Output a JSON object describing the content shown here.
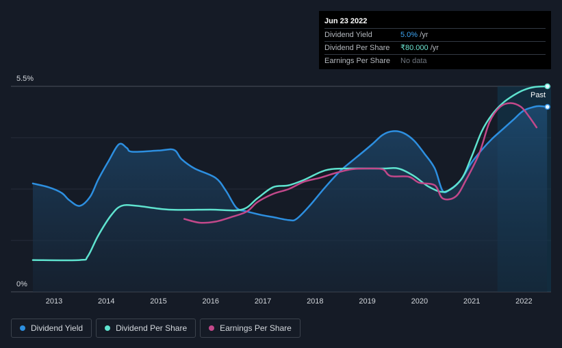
{
  "tooltip": {
    "date": "Jun 23 2022",
    "rows": [
      {
        "label": "Dividend Yield",
        "value": "5.0%",
        "unit": " /yr"
      },
      {
        "label": "Dividend Per Share",
        "value": "₹80.000",
        "unit": " /yr"
      },
      {
        "label": "Earnings Per Share",
        "value": "No data",
        "unit": ""
      }
    ]
  },
  "legend": [
    {
      "label": "Dividend Yield",
      "color": "#2d8fe0"
    },
    {
      "label": "Dividend Per Share",
      "color": "#5fe3cf"
    },
    {
      "label": "Earnings Per Share",
      "color": "#c2488a"
    }
  ],
  "chart_data": {
    "type": "line",
    "title": "",
    "xlabel": "",
    "ylabel": "",
    "xlim": [
      2012.6,
      2022.5
    ],
    "ylim": [
      0,
      5.5
    ],
    "y_ticks": [
      {
        "value": 5.5,
        "label": "5.5%"
      },
      {
        "value": 0,
        "label": "0%"
      }
    ],
    "x_ticks": [
      {
        "value": 2013,
        "label": "2013"
      },
      {
        "value": 2014,
        "label": "2014"
      },
      {
        "value": 2015,
        "label": "2015"
      },
      {
        "value": 2016,
        "label": "2016"
      },
      {
        "value": 2017,
        "label": "2017"
      },
      {
        "value": 2018,
        "label": "2018"
      },
      {
        "value": 2019,
        "label": "2019"
      },
      {
        "value": 2020,
        "label": "2020"
      },
      {
        "value": 2021,
        "label": "2021"
      },
      {
        "value": 2022,
        "label": "2022"
      }
    ],
    "past_region": {
      "start": 2021.5,
      "label": "Past"
    },
    "series": [
      {
        "name": "Dividend Yield",
        "color": "#2d8fe0",
        "fill": true,
        "points": [
          [
            2012.6,
            2.9
          ],
          [
            2012.9,
            2.8
          ],
          [
            2013.15,
            2.65
          ],
          [
            2013.3,
            2.45
          ],
          [
            2013.5,
            2.3
          ],
          [
            2013.7,
            2.55
          ],
          [
            2013.85,
            3.0
          ],
          [
            2014.05,
            3.5
          ],
          [
            2014.25,
            3.95
          ],
          [
            2014.4,
            3.85
          ],
          [
            2014.5,
            3.75
          ],
          [
            2015.0,
            3.78
          ],
          [
            2015.3,
            3.8
          ],
          [
            2015.45,
            3.55
          ],
          [
            2015.7,
            3.3
          ],
          [
            2016.1,
            3.05
          ],
          [
            2016.3,
            2.7
          ],
          [
            2016.5,
            2.25
          ],
          [
            2016.7,
            2.15
          ],
          [
            2017.0,
            2.05
          ],
          [
            2017.2,
            2.0
          ],
          [
            2017.5,
            1.92
          ],
          [
            2017.65,
            1.95
          ],
          [
            2017.9,
            2.3
          ],
          [
            2018.2,
            2.8
          ],
          [
            2018.5,
            3.25
          ],
          [
            2018.8,
            3.6
          ],
          [
            2019.1,
            3.95
          ],
          [
            2019.3,
            4.2
          ],
          [
            2019.5,
            4.3
          ],
          [
            2019.7,
            4.25
          ],
          [
            2019.9,
            4.05
          ],
          [
            2020.1,
            3.7
          ],
          [
            2020.3,
            3.3
          ],
          [
            2020.45,
            2.7
          ],
          [
            2020.6,
            2.75
          ],
          [
            2020.8,
            3.0
          ],
          [
            2021.0,
            3.45
          ],
          [
            2021.2,
            3.8
          ],
          [
            2021.4,
            4.1
          ],
          [
            2021.6,
            4.35
          ],
          [
            2021.8,
            4.6
          ],
          [
            2022.0,
            4.85
          ],
          [
            2022.2,
            4.95
          ],
          [
            2022.3,
            4.97
          ],
          [
            2022.45,
            4.95
          ]
        ]
      },
      {
        "name": "Dividend Per Share",
        "color": "#5fe3cf",
        "fill": false,
        "points": [
          [
            2012.6,
            0.85
          ],
          [
            2013.5,
            0.85
          ],
          [
            2013.65,
            0.95
          ],
          [
            2013.85,
            1.5
          ],
          [
            2014.1,
            2.05
          ],
          [
            2014.3,
            2.3
          ],
          [
            2014.6,
            2.3
          ],
          [
            2015.2,
            2.2
          ],
          [
            2016.0,
            2.2
          ],
          [
            2016.6,
            2.2
          ],
          [
            2016.9,
            2.5
          ],
          [
            2017.2,
            2.8
          ],
          [
            2017.5,
            2.85
          ],
          [
            2017.8,
            3.0
          ],
          [
            2018.1,
            3.2
          ],
          [
            2018.3,
            3.28
          ],
          [
            2018.6,
            3.3
          ],
          [
            2019.3,
            3.3
          ],
          [
            2019.6,
            3.3
          ],
          [
            2019.9,
            3.1
          ],
          [
            2020.2,
            2.8
          ],
          [
            2020.5,
            2.68
          ],
          [
            2020.8,
            3.0
          ],
          [
            2021.0,
            3.6
          ],
          [
            2021.2,
            4.3
          ],
          [
            2021.4,
            4.75
          ],
          [
            2021.6,
            5.05
          ],
          [
            2021.8,
            5.25
          ],
          [
            2022.0,
            5.4
          ],
          [
            2022.2,
            5.48
          ],
          [
            2022.45,
            5.5
          ]
        ]
      },
      {
        "name": "Earnings Per Share",
        "color": "#c2488a",
        "fill": false,
        "points": [
          [
            2015.5,
            1.95
          ],
          [
            2015.8,
            1.85
          ],
          [
            2016.1,
            1.88
          ],
          [
            2016.4,
            2.0
          ],
          [
            2016.7,
            2.15
          ],
          [
            2016.9,
            2.4
          ],
          [
            2017.2,
            2.62
          ],
          [
            2017.5,
            2.75
          ],
          [
            2017.8,
            2.95
          ],
          [
            2018.1,
            3.05
          ],
          [
            2018.4,
            3.18
          ],
          [
            2018.7,
            3.28
          ],
          [
            2019.0,
            3.3
          ],
          [
            2019.3,
            3.28
          ],
          [
            2019.45,
            3.1
          ],
          [
            2019.8,
            3.08
          ],
          [
            2020.0,
            2.92
          ],
          [
            2020.3,
            2.85
          ],
          [
            2020.45,
            2.5
          ],
          [
            2020.7,
            2.55
          ],
          [
            2020.9,
            3.0
          ],
          [
            2021.15,
            3.7
          ],
          [
            2021.35,
            4.55
          ],
          [
            2021.55,
            4.95
          ],
          [
            2021.75,
            5.05
          ],
          [
            2021.95,
            4.95
          ],
          [
            2022.1,
            4.7
          ],
          [
            2022.25,
            4.4
          ]
        ]
      }
    ],
    "end_markers": [
      {
        "series": "Dividend Per Share",
        "x": 2022.45,
        "y": 5.5
      },
      {
        "series": "Dividend Yield",
        "x": 2022.45,
        "y": 4.95
      }
    ]
  }
}
